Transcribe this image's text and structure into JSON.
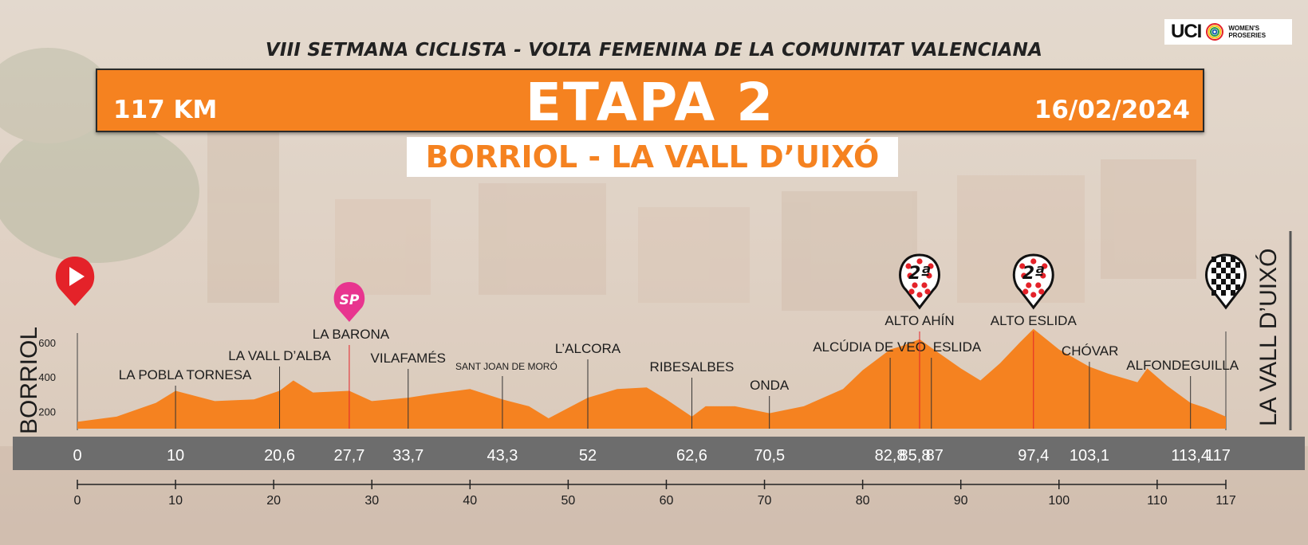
{
  "header": {
    "subtitle": "VIII SETMANA CICLISTA - VOLTA FEMENINA DE LA COMUNITAT VALENCIANA",
    "distance": "117 KM",
    "stage": "ETAPA 2",
    "date": "16/02/2024",
    "route": "BORRIOL - LA VALL D’UIXÓ"
  },
  "logo": {
    "brand": "UCI",
    "line1": "WOMEN'S",
    "line2": "PROSERIES"
  },
  "colors": {
    "profile_fill": "#f58220",
    "banner": "#f58220",
    "km_band": "#6d6d6d",
    "start_marker": "#e42229",
    "sprint_marker": "#e8358f",
    "kom_marker": "#e42229"
  },
  "chart_data": {
    "type": "area",
    "xlabel": "",
    "ylabel": "",
    "xlim": [
      0,
      117
    ],
    "ylim": [
      100,
      700
    ],
    "start_label": "BORRIOL",
    "finish_label": "LA VALL D’UIXÓ",
    "y_ticks": [
      200,
      400,
      600
    ],
    "x_ticks": [
      0,
      10,
      20,
      30,
      40,
      50,
      60,
      70,
      80,
      90,
      100,
      110,
      117
    ],
    "elevation": {
      "km": [
        0,
        4,
        8,
        10,
        14,
        18,
        20.6,
        22,
        24,
        27.7,
        30,
        33.7,
        36,
        40,
        43.3,
        46,
        48,
        52,
        55,
        58,
        60,
        62.6,
        64,
        67,
        70.5,
        74,
        78,
        80,
        82.8,
        84,
        85.8,
        87,
        90,
        92,
        94,
        96,
        97.4,
        100,
        103.1,
        105,
        108,
        109,
        111,
        113.4,
        115,
        117
      ],
      "alt": [
        140,
        170,
        250,
        320,
        260,
        270,
        320,
        380,
        310,
        320,
        260,
        280,
        300,
        330,
        270,
        230,
        160,
        280,
        330,
        340,
        270,
        170,
        230,
        230,
        190,
        230,
        330,
        440,
        560,
        580,
        620,
        570,
        450,
        380,
        480,
        600,
        680,
        560,
        460,
        420,
        370,
        450,
        350,
        250,
        220,
        170
      ]
    },
    "waypoints": [
      {
        "km": 0,
        "km_label": "0",
        "name": "",
        "type": "start"
      },
      {
        "km": 10,
        "km_label": "10",
        "name": "LA POBLA TORNESA"
      },
      {
        "km": 20.6,
        "km_label": "20,6",
        "name": "LA VALL D’ALBA"
      },
      {
        "km": 27.7,
        "km_label": "27,7",
        "name": "LA BARONA",
        "type": "sprint",
        "marker_text": "SP"
      },
      {
        "km": 33.7,
        "km_label": "33,7",
        "name": "VILAFAMÉS"
      },
      {
        "km": 43.3,
        "km_label": "43,3",
        "name": "SANT JOAN DE MORÓ"
      },
      {
        "km": 52,
        "km_label": "52",
        "name": "L’ALCORA"
      },
      {
        "km": 62.6,
        "km_label": "62,6",
        "name": "RIBESALBES"
      },
      {
        "km": 70.5,
        "km_label": "70,5",
        "name": "ONDA"
      },
      {
        "km": 82.8,
        "km_label": "82,8",
        "name": "ALCÚDIA DE VEO"
      },
      {
        "km": 85.8,
        "km_label": "85,8",
        "name": "ALTO AHÍN",
        "type": "kom",
        "marker_text": "2ª"
      },
      {
        "km": 87,
        "km_label": "87",
        "name": "ESLIDA"
      },
      {
        "km": 97.4,
        "km_label": "97,4",
        "name": "ALTO ESLIDA",
        "type": "kom",
        "marker_text": "2ª"
      },
      {
        "km": 103.1,
        "km_label": "103,1",
        "name": "CHÓVAR"
      },
      {
        "km": 113.4,
        "km_label": "113,4",
        "name": "ALFONDEGUILLA"
      },
      {
        "km": 117,
        "km_label": "117",
        "name": "",
        "type": "finish"
      }
    ]
  }
}
